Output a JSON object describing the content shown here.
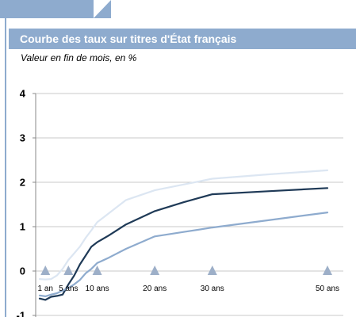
{
  "header": {
    "title": "Courbe des taux sur titres d'État français",
    "subtitle": "Valeur en fin de mois, en %"
  },
  "colors": {
    "band": "#8eabce",
    "grid": "#c8c8c8",
    "marker": "#9dafc8"
  },
  "chart_data": {
    "type": "line",
    "title": "Courbe des taux sur titres d'État français",
    "subtitle": "Valeur en fin de mois, en %",
    "xlabel": "",
    "ylabel": "",
    "xlim": [
      0,
      50
    ],
    "ylim": [
      -1,
      4
    ],
    "y_ticks": [
      4,
      3,
      2,
      1,
      0,
      -1
    ],
    "grid": true,
    "legend": "none",
    "x_markers": [
      {
        "x": 1,
        "label": "1 an"
      },
      {
        "x": 5,
        "label": "5 ans"
      },
      {
        "x": 10,
        "label": "10 ans"
      },
      {
        "x": 20,
        "label": "20 ans"
      },
      {
        "x": 30,
        "label": "30 ans"
      },
      {
        "x": 50,
        "label": "50 ans"
      }
    ],
    "series": [
      {
        "color": "#dce6f2",
        "points": [
          [
            0,
            -0.18
          ],
          [
            1,
            -0.19
          ],
          [
            2,
            -0.18
          ],
          [
            3,
            -0.1
          ],
          [
            4,
            0.05
          ],
          [
            5,
            0.25
          ],
          [
            6,
            0.4
          ],
          [
            7,
            0.55
          ],
          [
            8,
            0.75
          ],
          [
            9,
            0.92
          ],
          [
            10,
            1.1
          ],
          [
            12,
            1.3
          ],
          [
            15,
            1.6
          ],
          [
            20,
            1.82
          ],
          [
            25,
            1.95
          ],
          [
            30,
            2.08
          ],
          [
            40,
            2.18
          ],
          [
            50,
            2.27
          ]
        ]
      },
      {
        "color": "#1f3a57",
        "points": [
          [
            0,
            -0.62
          ],
          [
            1,
            -0.65
          ],
          [
            2,
            -0.58
          ],
          [
            3,
            -0.56
          ],
          [
            4,
            -0.53
          ],
          [
            5,
            -0.3
          ],
          [
            6,
            -0.1
          ],
          [
            7,
            0.15
          ],
          [
            8,
            0.35
          ],
          [
            9,
            0.55
          ],
          [
            10,
            0.65
          ],
          [
            12,
            0.8
          ],
          [
            15,
            1.05
          ],
          [
            20,
            1.35
          ],
          [
            25,
            1.55
          ],
          [
            30,
            1.73
          ],
          [
            40,
            1.8
          ],
          [
            50,
            1.87
          ]
        ]
      },
      {
        "color": "#8eabce",
        "points": [
          [
            0,
            -0.55
          ],
          [
            1,
            -0.57
          ],
          [
            2,
            -0.53
          ],
          [
            3,
            -0.5
          ],
          [
            4,
            -0.44
          ],
          [
            5,
            -0.38
          ],
          [
            6,
            -0.3
          ],
          [
            7,
            -0.2
          ],
          [
            8,
            -0.05
          ],
          [
            9,
            0.05
          ],
          [
            10,
            0.18
          ],
          [
            12,
            0.3
          ],
          [
            15,
            0.5
          ],
          [
            20,
            0.78
          ],
          [
            25,
            0.88
          ],
          [
            30,
            0.98
          ],
          [
            40,
            1.15
          ],
          [
            50,
            1.32
          ]
        ]
      }
    ]
  }
}
